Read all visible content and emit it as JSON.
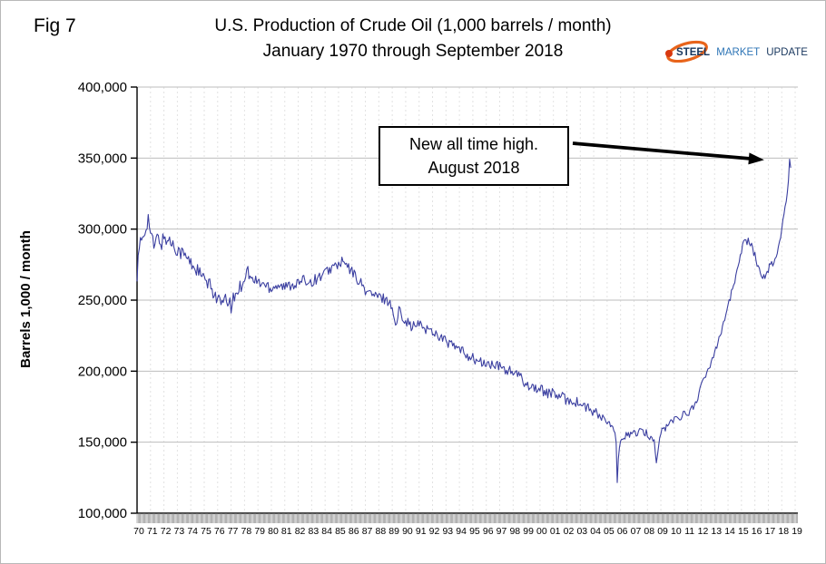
{
  "page": {
    "fig_label": "Fig 7"
  },
  "logo": {
    "steel": "STEEL",
    "market": "MARKET",
    "update": "UPDATE",
    "swoosh_color": "#e8641b",
    "steel_color": "#17365d",
    "market_color": "#2e75b6",
    "update_color": "#17365d"
  },
  "chart_data": {
    "type": "line",
    "title": "U.S. Production of Crude Oil (1,000 barrels / month) January 1970 through September 2018",
    "title_line1": "U.S. Production of Crude Oil (1,000 barrels / month)",
    "title_line2": "January 1970 through September 2018",
    "xlabel": "",
    "ylabel": "Barrels 1,000 / month",
    "ylim": [
      100000,
      400000
    ],
    "xlim": [
      1970,
      2019.2
    ],
    "grid": true,
    "legend": "none",
    "line_color": "#3b3fa0",
    "y_ticks": [
      100000,
      150000,
      200000,
      250000,
      300000,
      350000,
      400000
    ],
    "y_tick_labels": [
      "100,000",
      "150,000",
      "200,000",
      "250,000",
      "300,000",
      "350,000",
      "400,000"
    ],
    "x_tick_labels": [
      "70",
      "71",
      "72",
      "73",
      "74",
      "75",
      "76",
      "77",
      "78",
      "79",
      "80",
      "81",
      "82",
      "83",
      "84",
      "85",
      "86",
      "87",
      "88",
      "89",
      "90",
      "91",
      "92",
      "93",
      "94",
      "95",
      "96",
      "97",
      "98",
      "99",
      "00",
      "01",
      "02",
      "03",
      "04",
      "05",
      "06",
      "07",
      "08",
      "09",
      "10",
      "11",
      "12",
      "13",
      "14",
      "15",
      "16",
      "17",
      "18",
      "19"
    ],
    "annotation": {
      "text_line1": "New all time high.",
      "text_line2": "August 2018",
      "arrow_points_to": {
        "x": 2018.583,
        "y": 350000
      }
    },
    "series": [
      {
        "name": "U.S. crude oil production (1,000 barrels / month), monthly, estimated keypoints [year, value]",
        "keypoints": [
          [
            1970.0,
            265000
          ],
          [
            1970.08,
            278000
          ],
          [
            1970.25,
            290000
          ],
          [
            1970.5,
            296000
          ],
          [
            1970.83,
            308000
          ],
          [
            1971.0,
            298000
          ],
          [
            1971.25,
            287000
          ],
          [
            1971.5,
            294000
          ],
          [
            1971.83,
            290000
          ],
          [
            1972.0,
            294000
          ],
          [
            1972.5,
            291000
          ],
          [
            1973.0,
            286000
          ],
          [
            1973.5,
            282000
          ],
          [
            1974.0,
            276000
          ],
          [
            1974.5,
            271000
          ],
          [
            1975.0,
            264000
          ],
          [
            1975.5,
            259000
          ],
          [
            1976.0,
            251000
          ],
          [
            1976.33,
            247000
          ],
          [
            1976.67,
            250000
          ],
          [
            1977.0,
            246000
          ],
          [
            1977.25,
            252000
          ],
          [
            1977.5,
            257000
          ],
          [
            1977.83,
            262000
          ],
          [
            1978.0,
            267000
          ],
          [
            1978.25,
            271000
          ],
          [
            1978.5,
            264000
          ],
          [
            1979.0,
            263000
          ],
          [
            1979.5,
            261000
          ],
          [
            1980.0,
            259000
          ],
          [
            1980.5,
            261000
          ],
          [
            1981.0,
            259000
          ],
          [
            1981.5,
            261000
          ],
          [
            1982.0,
            262000
          ],
          [
            1982.5,
            264000
          ],
          [
            1983.0,
            263000
          ],
          [
            1983.5,
            266000
          ],
          [
            1984.0,
            269000
          ],
          [
            1984.5,
            273000
          ],
          [
            1985.0,
            275000
          ],
          [
            1985.33,
            277000
          ],
          [
            1985.67,
            273000
          ],
          [
            1986.0,
            270000
          ],
          [
            1986.5,
            264000
          ],
          [
            1987.0,
            257000
          ],
          [
            1987.5,
            254000
          ],
          [
            1988.0,
            252000
          ],
          [
            1988.5,
            251000
          ],
          [
            1989.0,
            246000
          ],
          [
            1989.25,
            230000
          ],
          [
            1989.5,
            243000
          ],
          [
            1990.0,
            236000
          ],
          [
            1990.5,
            231000
          ],
          [
            1991.0,
            233000
          ],
          [
            1991.5,
            230000
          ],
          [
            1992.0,
            228000
          ],
          [
            1992.5,
            225000
          ],
          [
            1993.0,
            221000
          ],
          [
            1993.5,
            218000
          ],
          [
            1994.0,
            215000
          ],
          [
            1994.5,
            212000
          ],
          [
            1995.0,
            209000
          ],
          [
            1995.5,
            206000
          ],
          [
            1996.0,
            205000
          ],
          [
            1996.5,
            204000
          ],
          [
            1997.0,
            203000
          ],
          [
            1997.5,
            201000
          ],
          [
            1998.0,
            199000
          ],
          [
            1998.5,
            196000
          ],
          [
            1999.0,
            191000
          ],
          [
            1999.5,
            189000
          ],
          [
            2000.0,
            187000
          ],
          [
            2000.5,
            185000
          ],
          [
            2001.0,
            184000
          ],
          [
            2001.5,
            182000
          ],
          [
            2002.0,
            180000
          ],
          [
            2002.5,
            179000
          ],
          [
            2003.0,
            177000
          ],
          [
            2003.5,
            174000
          ],
          [
            2004.0,
            171000
          ],
          [
            2004.5,
            168000
          ],
          [
            2005.0,
            164000
          ],
          [
            2005.5,
            158000
          ],
          [
            2005.67,
            150000
          ],
          [
            2005.75,
            122000
          ],
          [
            2005.83,
            138000
          ],
          [
            2006.0,
            148000
          ],
          [
            2006.25,
            154000
          ],
          [
            2006.5,
            156000
          ],
          [
            2007.0,
            156000
          ],
          [
            2007.5,
            157000
          ],
          [
            2008.0,
            156000
          ],
          [
            2008.5,
            151000
          ],
          [
            2008.67,
            135000
          ],
          [
            2008.83,
            147000
          ],
          [
            2009.0,
            157000
          ],
          [
            2009.5,
            162000
          ],
          [
            2010.0,
            166000
          ],
          [
            2010.5,
            169000
          ],
          [
            2011.0,
            170000
          ],
          [
            2011.5,
            176000
          ],
          [
            2012.0,
            189000
          ],
          [
            2012.5,
            200000
          ],
          [
            2013.0,
            214000
          ],
          [
            2013.5,
            229000
          ],
          [
            2014.0,
            246000
          ],
          [
            2014.5,
            263000
          ],
          [
            2015.0,
            286000
          ],
          [
            2015.25,
            294000
          ],
          [
            2015.5,
            291000
          ],
          [
            2015.75,
            288000
          ],
          [
            2016.0,
            281000
          ],
          [
            2016.33,
            272000
          ],
          [
            2016.67,
            266000
          ],
          [
            2016.9,
            269000
          ],
          [
            2017.0,
            272000
          ],
          [
            2017.33,
            276000
          ],
          [
            2017.67,
            283000
          ],
          [
            2017.9,
            294000
          ],
          [
            2018.0,
            301000
          ],
          [
            2018.17,
            311000
          ],
          [
            2018.33,
            320000
          ],
          [
            2018.5,
            333000
          ],
          [
            2018.583,
            350000
          ],
          [
            2018.667,
            344000
          ]
        ]
      }
    ]
  }
}
